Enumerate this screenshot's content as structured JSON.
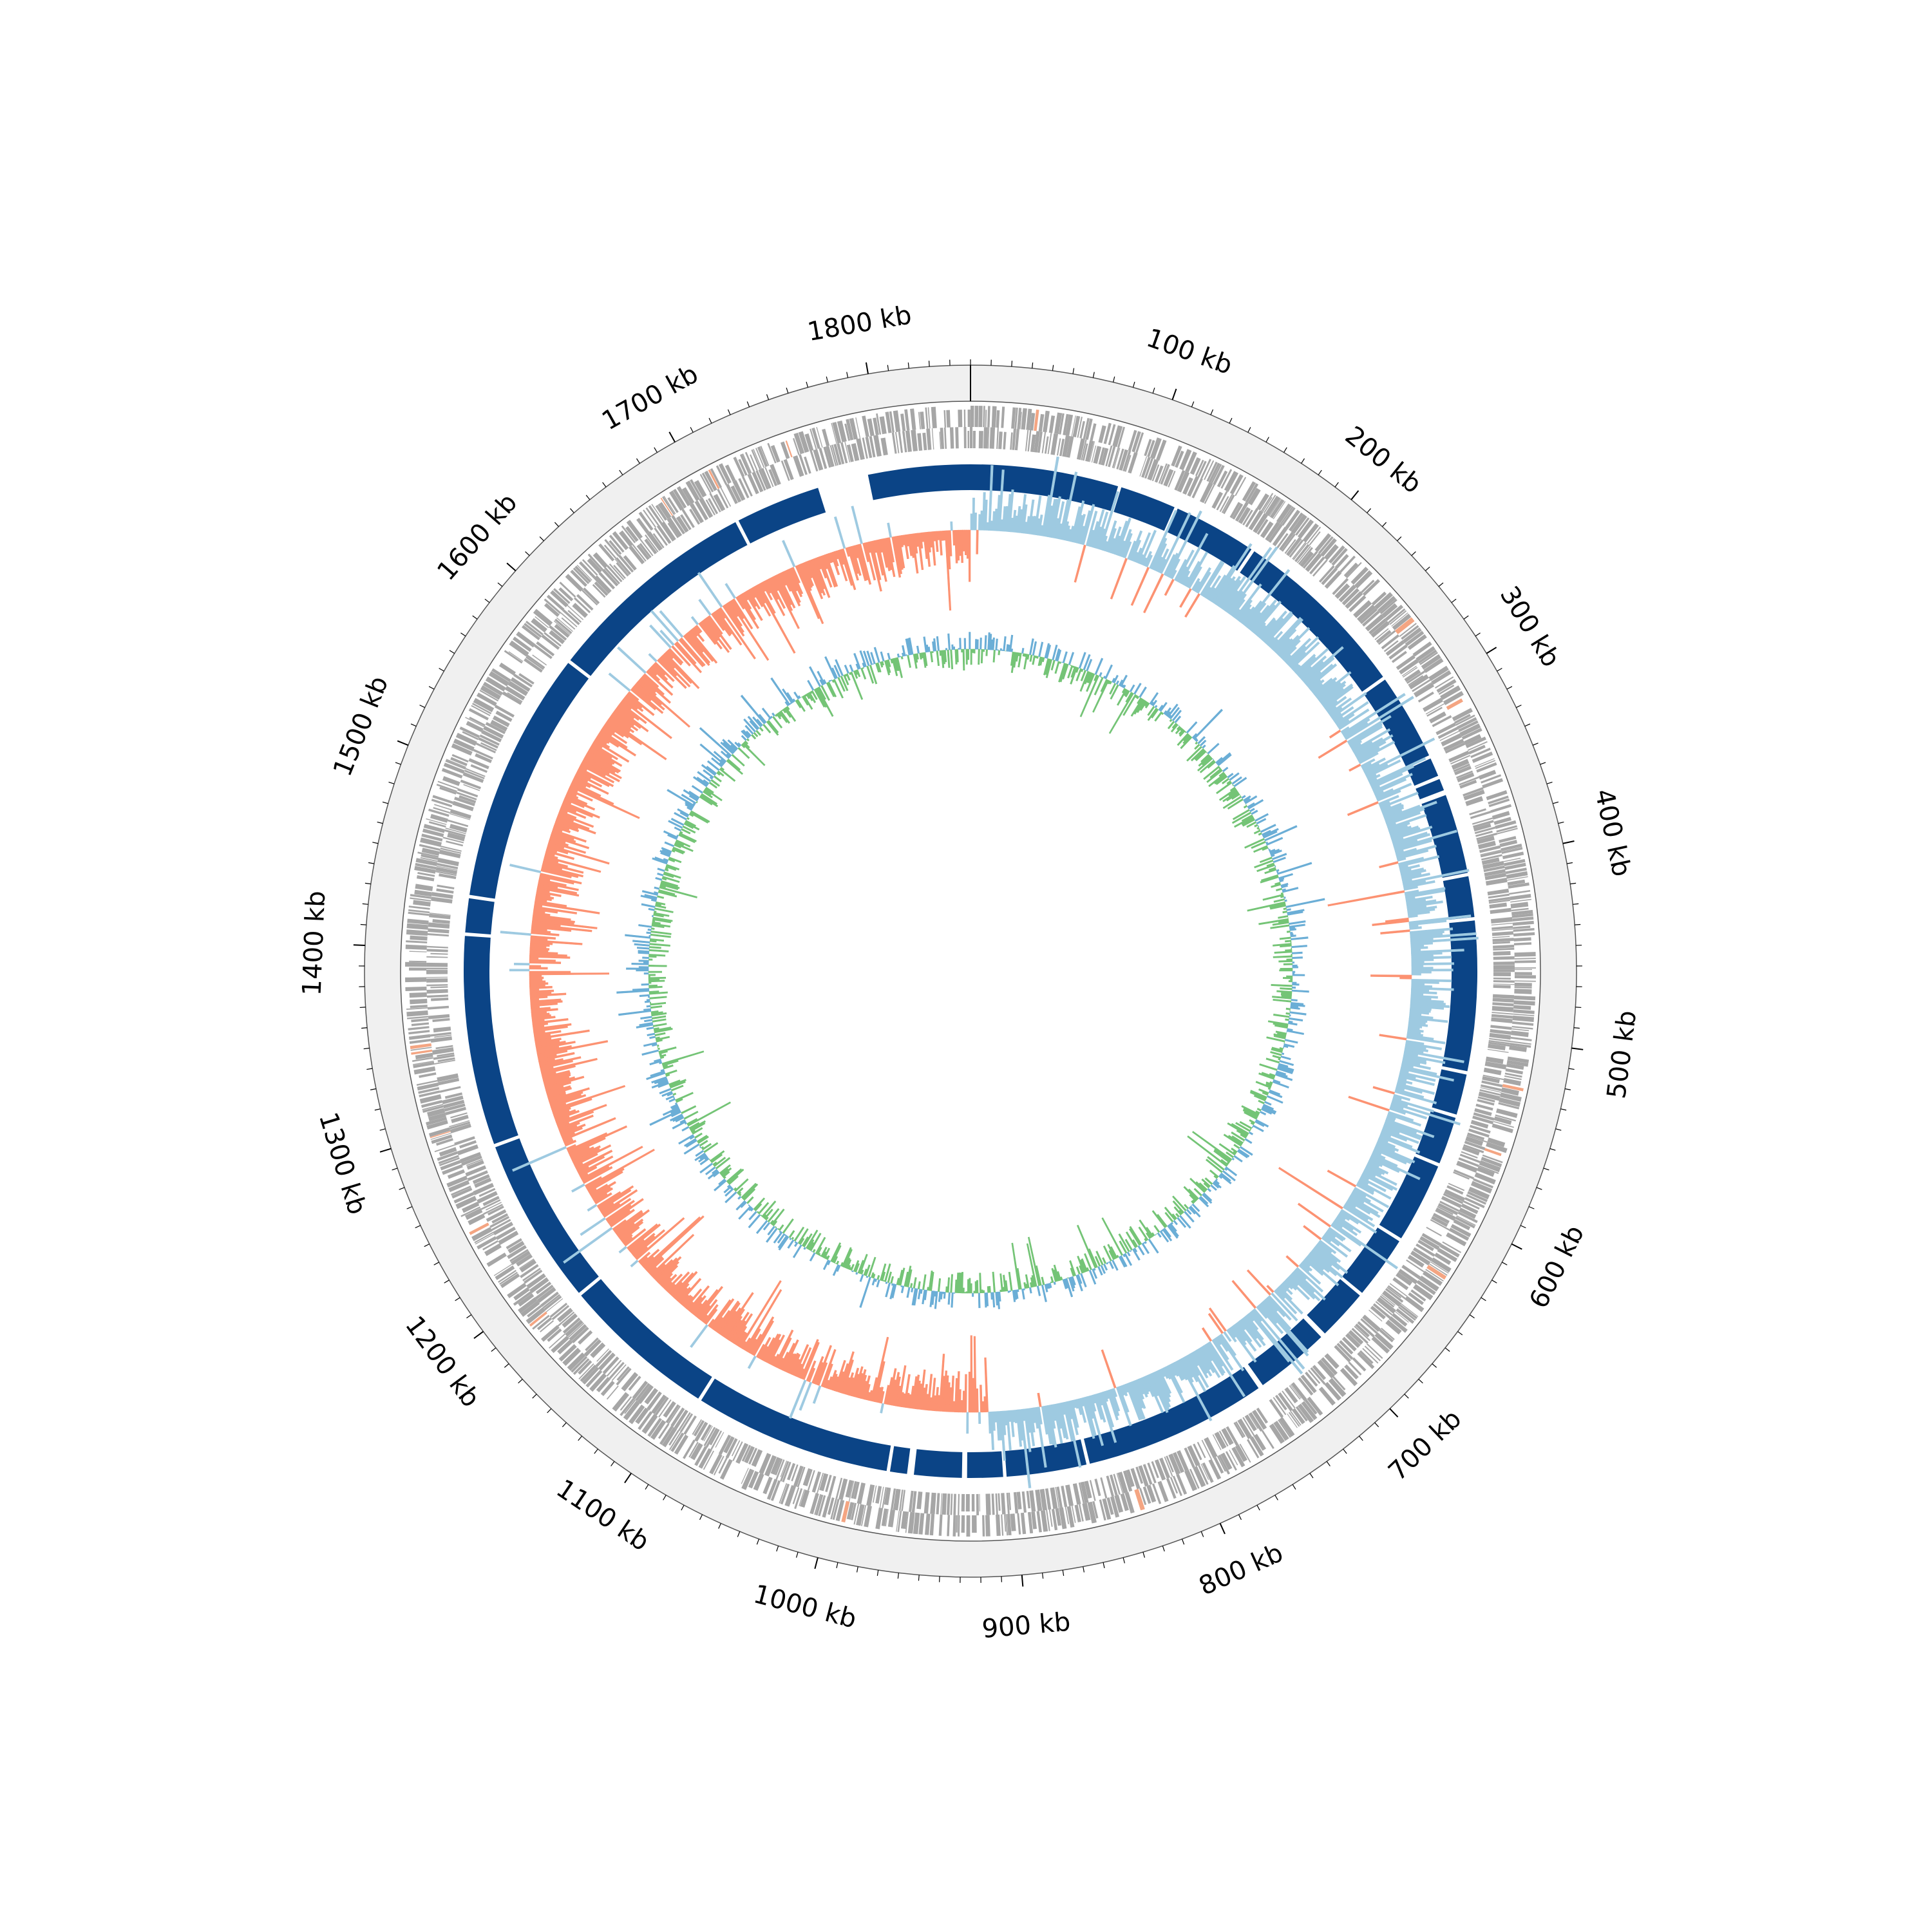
{
  "chart_data": {
    "type": "circular-genome-map",
    "genome_length_kb": 1850,
    "axis": {
      "unit": "kb",
      "major_tick_interval_kb": 100,
      "minor_tick_interval_kb": 10,
      "tick_labels": [
        "100 kb",
        "200 kb",
        "300 kb",
        "400 kb",
        "500 kb",
        "600 kb",
        "700 kb",
        "800 kb",
        "900 kb",
        "1000 kb",
        "1100 kb",
        "1200 kb",
        "1300 kb",
        "1400 kb",
        "1500 kb",
        "1600 kb",
        "1700 kb",
        "1800 kb"
      ]
    },
    "tracks": [
      {
        "name": "forward_cds",
        "type": "features",
        "color": "#a6a6a6",
        "highlight_color": "#f4a582"
      },
      {
        "name": "reverse_cds",
        "type": "features",
        "color": "#a6a6a6"
      },
      {
        "name": "contigs",
        "type": "blocks",
        "color": "#0b4486",
        "separator_color": "#ffffff",
        "blocks_kb": [
          [
            0,
            87
          ],
          [
            89,
            122
          ],
          [
            124,
            173
          ],
          [
            175,
            280
          ],
          [
            282,
            333
          ],
          [
            335,
            346
          ],
          [
            348,
            355
          ],
          [
            358,
            405
          ],
          [
            407,
            431
          ],
          [
            433,
            521
          ],
          [
            523,
            547
          ],
          [
            549,
            577
          ],
          [
            579,
            626
          ],
          [
            628,
            665
          ],
          [
            667,
            697
          ],
          [
            700,
            744
          ],
          [
            747,
            855
          ],
          [
            857,
            904
          ],
          [
            906,
            927
          ],
          [
            930,
            958
          ],
          [
            962,
            972
          ],
          [
            974,
            1090
          ],
          [
            1092,
            1183
          ],
          [
            1185,
            1283
          ],
          [
            1285,
            1408
          ],
          [
            1410,
            1430
          ],
          [
            1432,
            1580
          ],
          [
            1582,
            1708
          ],
          [
            1710,
            1760
          ],
          [
            1790,
            1850
          ]
        ]
      },
      {
        "name": "gc_skew",
        "type": "signed-area",
        "positive_color": "#9ecae1",
        "negative_color": "#fc9272",
        "origin_kb": 0,
        "terminus_kb": 913
      },
      {
        "name": "gc_content",
        "type": "signed-area",
        "positive_color": "#6baed6",
        "negative_color": "#74c476"
      }
    ]
  }
}
